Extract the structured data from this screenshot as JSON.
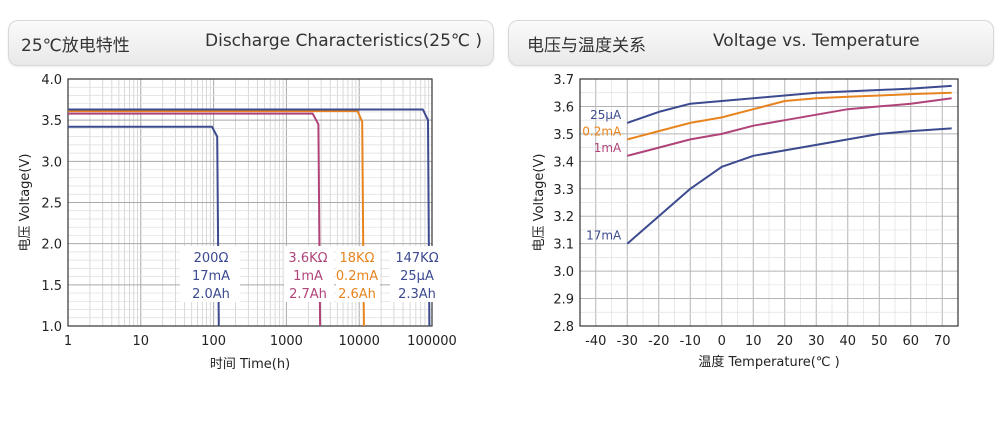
{
  "left_panel": {
    "title_cn": "25℃放电特性",
    "title_en": "Discharge Characteristics(25℃ )"
  },
  "right_panel": {
    "title_cn": "电压与温度关系",
    "title_en": "Voltage vs. Temperature"
  },
  "colors": {
    "navy": "#3c4a8f",
    "magenta": "#b0447a",
    "orange": "#e8841e"
  },
  "chart_data": [
    {
      "type": "line",
      "xscale": "log",
      "xlabel": "时间 Time(h)",
      "ylabel": "电压 Voltage(V)",
      "xlim": [
        1,
        100000
      ],
      "ylim": [
        1.0,
        4.0
      ],
      "xticks": [
        "1",
        "10",
        "100",
        "1000",
        "10000",
        "100000"
      ],
      "yticks": [
        "1.0",
        "1.5",
        "2.0",
        "2.5",
        "3.0",
        "3.5",
        "4.0"
      ],
      "grid": true,
      "series": [
        {
          "name": "200Ω 17mA 2.0Ah",
          "color": "#3c4a8f",
          "labels": [
            "200Ω",
            "17mA",
            "2.0Ah"
          ],
          "points": [
            [
              1,
              3.42
            ],
            [
              95,
              3.42
            ],
            [
              112,
              3.3
            ],
            [
              118,
              1.0
            ]
          ]
        },
        {
          "name": "3.6KΩ 1mA 2.7Ah",
          "color": "#b0447a",
          "labels": [
            "3.6KΩ",
            "1mA",
            "2.7Ah"
          ],
          "points": [
            [
              1,
              3.58
            ],
            [
              2300,
              3.58
            ],
            [
              2750,
              3.45
            ],
            [
              2900,
              1.0
            ]
          ]
        },
        {
          "name": "18KΩ 0.2mA 2.6Ah",
          "color": "#e8841e",
          "labels": [
            "18KΩ",
            "0.2mA",
            "2.6Ah"
          ],
          "points": [
            [
              1,
              3.61
            ],
            [
              9500,
              3.61
            ],
            [
              11000,
              3.48
            ],
            [
              11600,
              1.0
            ]
          ]
        },
        {
          "name": "147KΩ 25μA 2.3Ah",
          "color": "#3c4a8f",
          "labels": [
            "147KΩ",
            "25μA",
            "2.3Ah"
          ],
          "points": [
            [
              1,
              3.63
            ],
            [
              75000,
              3.63
            ],
            [
              88000,
              3.5
            ],
            [
              92000,
              1.0
            ]
          ]
        }
      ]
    },
    {
      "type": "line",
      "xlabel": "温度 Temperature(℃ )",
      "ylabel": "电压 Voltage(V)",
      "xlim": [
        -45,
        75
      ],
      "ylim": [
        2.8,
        3.7
      ],
      "xticks": [
        "-40",
        "-30",
        "-20",
        "-10",
        "0",
        "10",
        "20",
        "30",
        "40",
        "50",
        "60",
        "70"
      ],
      "yticks": [
        "2.8",
        "2.9",
        "3.0",
        "3.1",
        "3.2",
        "3.3",
        "3.4",
        "3.5",
        "3.6",
        "3.7"
      ],
      "grid": true,
      "series": [
        {
          "name": "25μA",
          "color": "#3c4a8f",
          "points": [
            [
              -30,
              3.54
            ],
            [
              -20,
              3.58
            ],
            [
              -10,
              3.61
            ],
            [
              0,
              3.62
            ],
            [
              10,
              3.63
            ],
            [
              20,
              3.64
            ],
            [
              30,
              3.65
            ],
            [
              40,
              3.655
            ],
            [
              50,
              3.66
            ],
            [
              60,
              3.665
            ],
            [
              73,
              3.675
            ]
          ]
        },
        {
          "name": "0.2mA",
          "color": "#e8841e",
          "points": [
            [
              -30,
              3.48
            ],
            [
              -20,
              3.51
            ],
            [
              -10,
              3.54
            ],
            [
              0,
              3.56
            ],
            [
              10,
              3.59
            ],
            [
              20,
              3.62
            ],
            [
              30,
              3.63
            ],
            [
              40,
              3.635
            ],
            [
              50,
              3.64
            ],
            [
              60,
              3.645
            ],
            [
              73,
              3.65
            ]
          ]
        },
        {
          "name": "1mA",
          "color": "#b0447a",
          "points": [
            [
              -30,
              3.42
            ],
            [
              -20,
              3.45
            ],
            [
              -10,
              3.48
            ],
            [
              0,
              3.5
            ],
            [
              10,
              3.53
            ],
            [
              20,
              3.55
            ],
            [
              30,
              3.57
            ],
            [
              40,
              3.59
            ],
            [
              50,
              3.6
            ],
            [
              60,
              3.61
            ],
            [
              73,
              3.63
            ]
          ]
        },
        {
          "name": "17mA",
          "color": "#3c4a8f",
          "points": [
            [
              -30,
              3.1
            ],
            [
              -20,
              3.2
            ],
            [
              -10,
              3.3
            ],
            [
              0,
              3.38
            ],
            [
              10,
              3.42
            ],
            [
              20,
              3.44
            ],
            [
              30,
              3.46
            ],
            [
              40,
              3.48
            ],
            [
              50,
              3.5
            ],
            [
              60,
              3.51
            ],
            [
              73,
              3.52
            ]
          ]
        }
      ]
    }
  ]
}
